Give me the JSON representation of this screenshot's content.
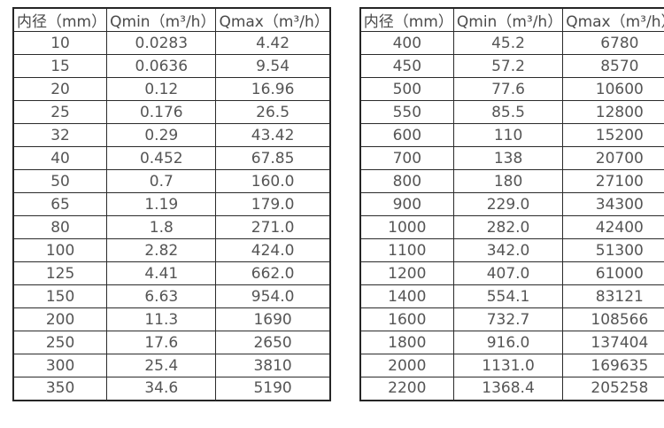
{
  "colors": {
    "background": "#ffffff",
    "border": "#2b2b2b",
    "header_text": "#4a4a4a",
    "cell_text": "#555555"
  },
  "tables": [
    {
      "name": "flow-table-small-diameters",
      "headers": [
        "内径（mm）",
        "Qmin（m³/h）",
        "Qmax（m³/h）"
      ],
      "rows": [
        [
          "10",
          "0.0283",
          "4.42"
        ],
        [
          "15",
          "0.0636",
          "9.54"
        ],
        [
          "20",
          "0.12",
          "16.96"
        ],
        [
          "25",
          "0.176",
          "26.5"
        ],
        [
          "32",
          "0.29",
          "43.42"
        ],
        [
          "40",
          "0.452",
          "67.85"
        ],
        [
          "50",
          "0.7",
          "160.0"
        ],
        [
          "65",
          "1.19",
          "179.0"
        ],
        [
          "80",
          "1.8",
          "271.0"
        ],
        [
          "100",
          "2.82",
          "424.0"
        ],
        [
          "125",
          "4.41",
          "662.0"
        ],
        [
          "150",
          "6.63",
          "954.0"
        ],
        [
          "200",
          "11.3",
          "1690"
        ],
        [
          "250",
          "17.6",
          "2650"
        ],
        [
          "300",
          "25.4",
          "3810"
        ],
        [
          "350",
          "34.6",
          "5190"
        ]
      ]
    },
    {
      "name": "flow-table-large-diameters",
      "headers": [
        "内径（mm）",
        "Qmin（m³/h）",
        "Qmax（m³/h）"
      ],
      "rows": [
        [
          "400",
          "45.2",
          "6780"
        ],
        [
          "450",
          "57.2",
          "8570"
        ],
        [
          "500",
          "77.6",
          "10600"
        ],
        [
          "550",
          "85.5",
          "12800"
        ],
        [
          "600",
          "110",
          "15200"
        ],
        [
          "700",
          "138",
          "20700"
        ],
        [
          "800",
          "180",
          "27100"
        ],
        [
          "900",
          "229.0",
          "34300"
        ],
        [
          "1000",
          "282.0",
          "42400"
        ],
        [
          "1100",
          "342.0",
          "51300"
        ],
        [
          "1200",
          "407.0",
          "61000"
        ],
        [
          "1400",
          "554.1",
          "83121"
        ],
        [
          "1600",
          "732.7",
          "108566"
        ],
        [
          "1800",
          "916.0",
          "137404"
        ],
        [
          "2000",
          "1131.0",
          "169635"
        ],
        [
          "2200",
          "1368.4",
          "205258"
        ]
      ]
    }
  ]
}
